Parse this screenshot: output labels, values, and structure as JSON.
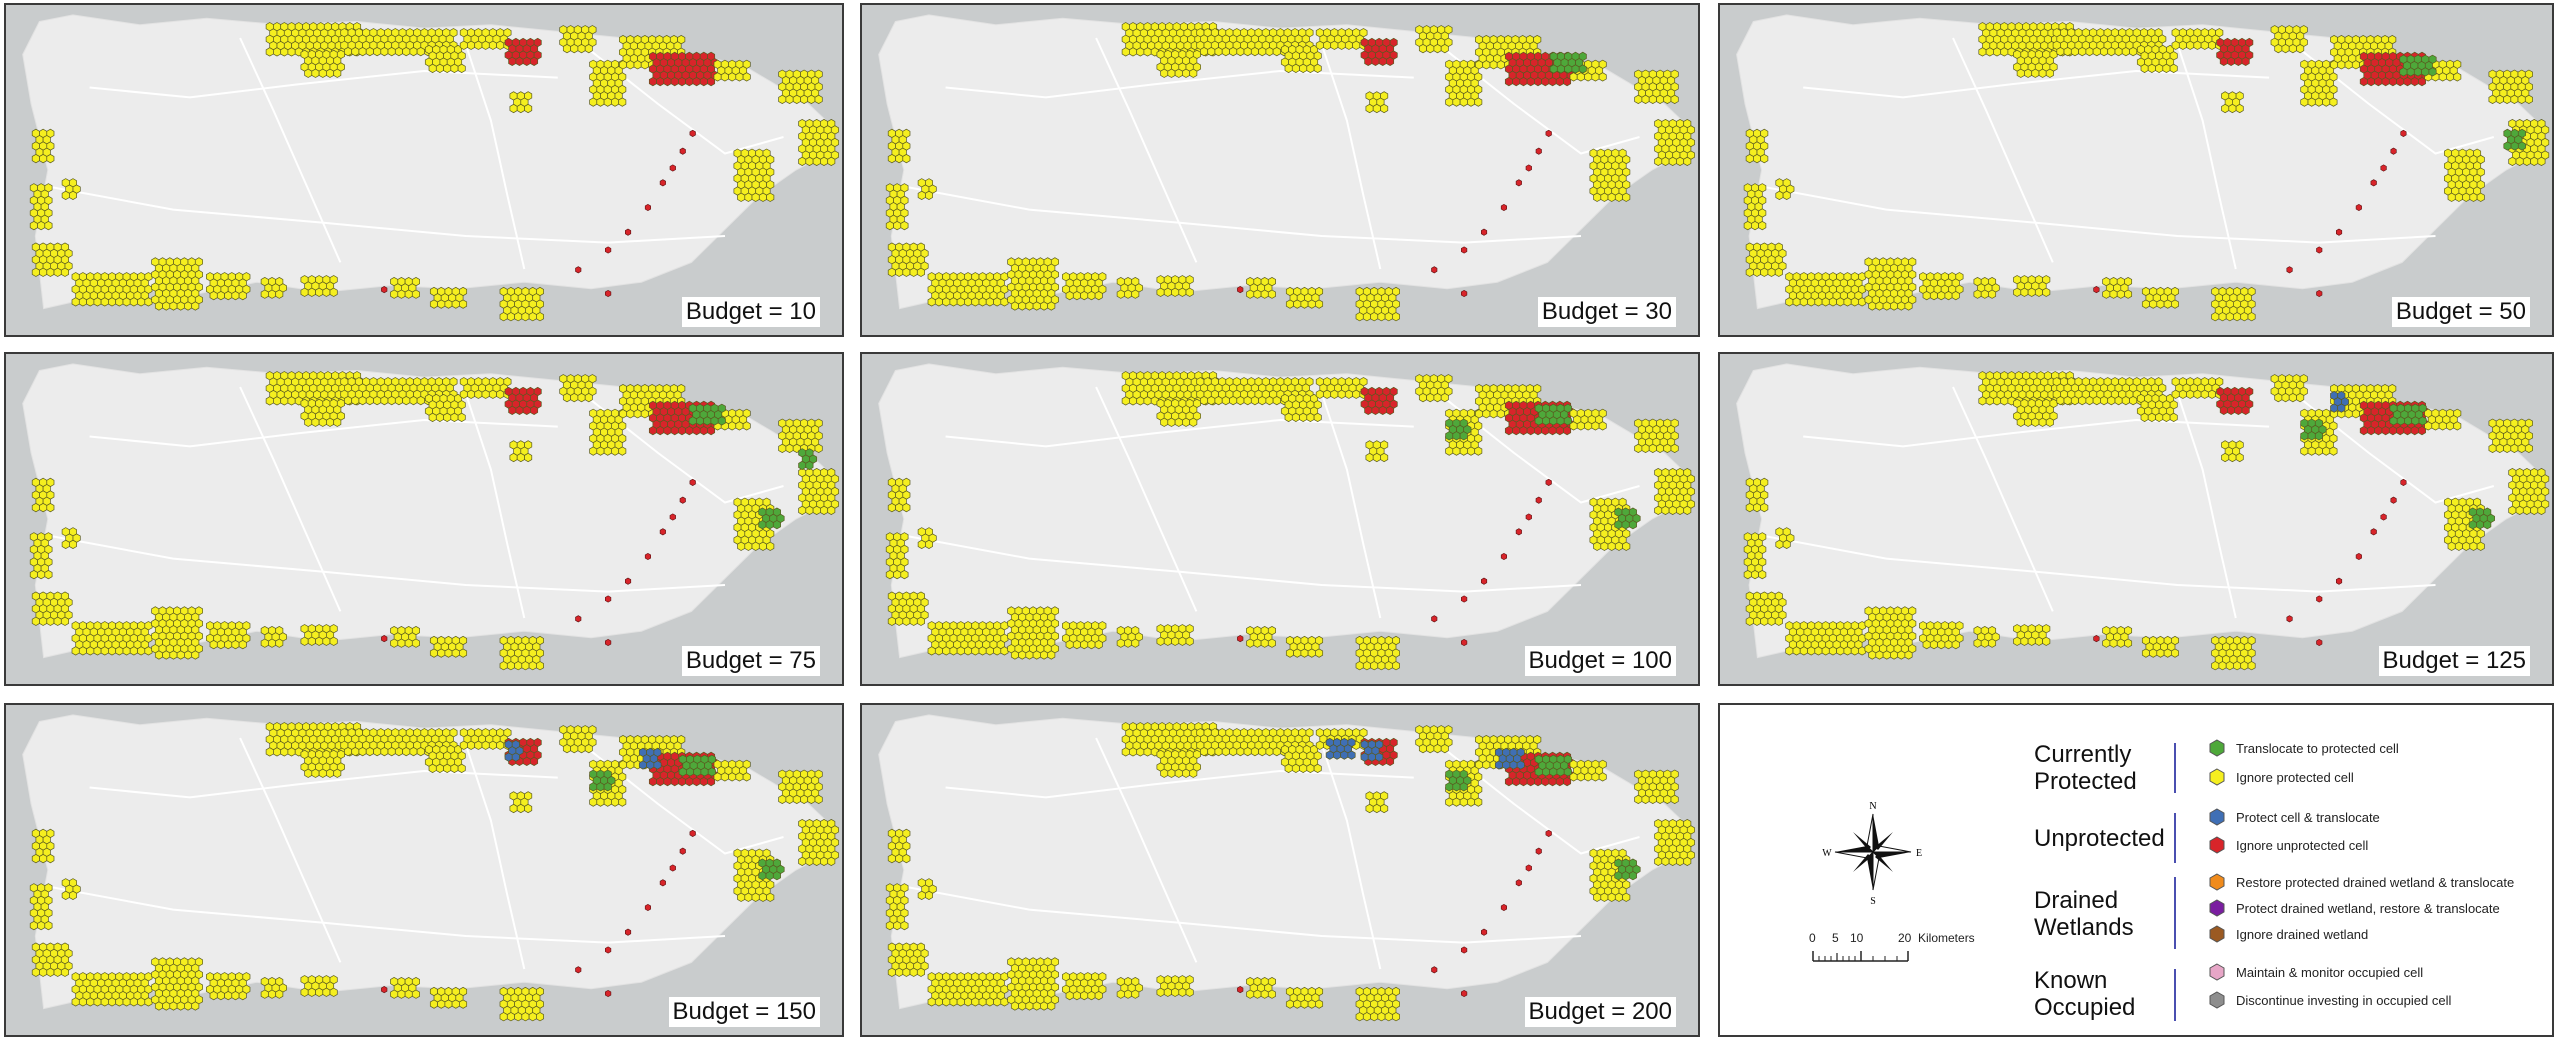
{
  "panels": [
    {
      "budget_label": "Budget = 10"
    },
    {
      "budget_label": "Budget = 30"
    },
    {
      "budget_label": "Budget = 50"
    },
    {
      "budget_label": "Budget = 75"
    },
    {
      "budget_label": "Budget = 100"
    },
    {
      "budget_label": "Budget = 125"
    },
    {
      "budget_label": "Budget = 150"
    },
    {
      "budget_label": "Budget = 200"
    }
  ],
  "legend": {
    "categories": [
      {
        "title_line1": "Currently",
        "title_line2": "Protected",
        "items": [
          {
            "label": "Translocate to protected cell",
            "color": "#4ea83a"
          },
          {
            "label": "Ignore protected cell",
            "color": "#f5ef1f"
          }
        ]
      },
      {
        "title_line1": "Unprotected",
        "title_line2": "",
        "items": [
          {
            "label": "Protect cell & translocate",
            "color": "#3f6fb5"
          },
          {
            "label": "Ignore unprotected cell",
            "color": "#d8242a"
          }
        ]
      },
      {
        "title_line1": "Drained",
        "title_line2": "Wetlands",
        "items": [
          {
            "label": "Restore protected drained wetland & translocate",
            "color": "#f08b1c"
          },
          {
            "label": "Protect drained wetland, restore & translocate",
            "color": "#7a1ea0"
          },
          {
            "label": "Ignore drained wetland",
            "color": "#9b5a22"
          }
        ]
      },
      {
        "title_line1": "Known",
        "title_line2": "Occupied",
        "items": [
          {
            "label": "Maintain & monitor occupied cell",
            "color": "#e7a6c7"
          },
          {
            "label": "Discontinue investing in occupied cell",
            "color": "#8e8e8e"
          }
        ]
      }
    ],
    "compass": {
      "n": "N",
      "s": "S",
      "e": "E",
      "w": "W"
    },
    "scale": {
      "ticks": [
        "0",
        "5",
        "10",
        "20"
      ],
      "unit": "Kilometers"
    }
  },
  "colors": {
    "sea": "#c9cccd",
    "land": "#ececec",
    "protected": "#f5ef1f",
    "unprotected": "#d8242a",
    "translocate": "#4ea83a",
    "protect_translocate": "#3f6fb5"
  }
}
